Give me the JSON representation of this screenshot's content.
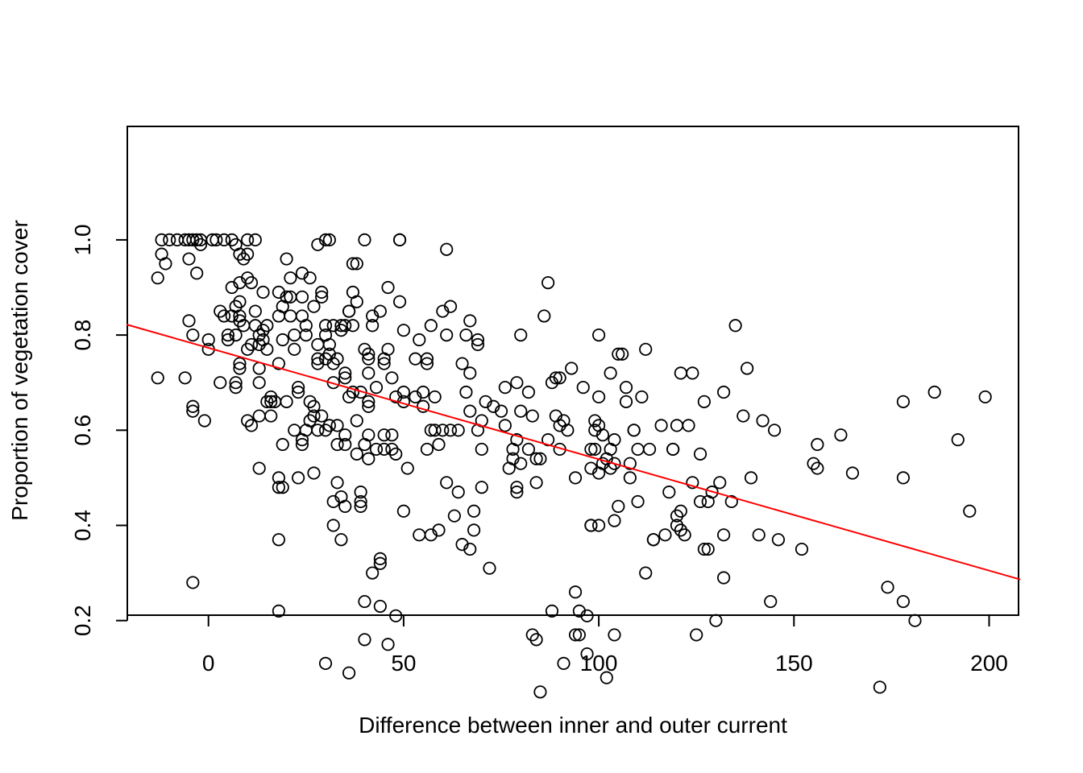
{
  "chart_data": {
    "type": "scatter",
    "title": "",
    "xlabel": "Difference between inner and outer current",
    "ylabel": "Proportion of vegetation cover",
    "xlim": [
      -21,
      208
    ],
    "ylim": [
      0.02,
      1.045
    ],
    "xticks": [
      0,
      50,
      100,
      150,
      200
    ],
    "yticks": [
      0.2,
      0.4,
      0.6,
      0.8,
      1.0
    ],
    "xtick_labels": [
      "0",
      "50",
      "100",
      "150",
      "200"
    ],
    "ytick_labels": [
      "0.2",
      "0.4",
      "0.6",
      "0.8",
      "1.0"
    ],
    "grid": false,
    "legend": "none",
    "point_color": "#000000",
    "line_color": "#ff0000",
    "fit_line": {
      "intercept": 0.773,
      "slope": -0.00234
    },
    "points": [
      [
        -12,
        1.0
      ],
      [
        -10,
        1.0
      ],
      [
        -8,
        1.0
      ],
      [
        -6,
        1.0
      ],
      [
        -5,
        1.0
      ],
      [
        -4,
        1.0
      ],
      [
        -3,
        1.0
      ],
      [
        -2,
        1.0
      ],
      [
        1,
        1.0
      ],
      [
        2,
        1.0
      ],
      [
        4,
        1.0
      ],
      [
        6,
        1.0
      ],
      [
        10,
        1.0
      ],
      [
        12,
        1.0
      ],
      [
        30,
        1.0
      ],
      [
        31,
        1.0
      ],
      [
        40,
        1.0
      ],
      [
        49,
        1.0
      ],
      [
        49,
        1.0
      ],
      [
        -12,
        0.97
      ],
      [
        -11,
        0.95
      ],
      [
        -5,
        0.96
      ],
      [
        -3,
        0.93
      ],
      [
        -2,
        0.99
      ],
      [
        6,
        0.9
      ],
      [
        7,
        0.99
      ],
      [
        8,
        0.97
      ],
      [
        9,
        0.96
      ],
      [
        10,
        0.97
      ],
      [
        10,
        0.92
      ],
      [
        11,
        0.91
      ],
      [
        8,
        0.91
      ],
      [
        -13,
        0.92
      ],
      [
        -13,
        0.71
      ],
      [
        -6,
        0.71
      ],
      [
        -5,
        0.83
      ],
      [
        -4,
        0.8
      ],
      [
        0,
        0.79
      ],
      [
        0,
        0.77
      ],
      [
        3,
        0.85
      ],
      [
        4,
        0.84
      ],
      [
        5,
        0.8
      ],
      [
        5,
        0.79
      ],
      [
        6,
        0.84
      ],
      [
        7,
        0.86
      ],
      [
        7,
        0.8
      ],
      [
        8,
        0.84
      ],
      [
        8,
        0.87
      ],
      [
        8,
        0.83
      ],
      [
        9,
        0.82
      ],
      [
        8,
        0.74
      ],
      [
        8,
        0.73
      ],
      [
        7,
        0.7
      ],
      [
        7,
        0.69
      ],
      [
        3,
        0.7
      ],
      [
        10,
        0.77
      ],
      [
        11,
        0.78
      ],
      [
        12,
        0.85
      ],
      [
        12,
        0.82
      ],
      [
        13,
        0.8
      ],
      [
        13,
        0.78
      ],
      [
        13,
        0.73
      ],
      [
        13,
        0.7
      ],
      [
        14,
        0.89
      ],
      [
        14,
        0.81
      ],
      [
        14,
        0.79
      ],
      [
        15,
        0.82
      ],
      [
        15,
        0.77
      ],
      [
        15,
        0.66
      ],
      [
        16,
        0.66
      ],
      [
        16,
        0.63
      ],
      [
        16,
        0.67
      ],
      [
        17,
        0.66
      ],
      [
        18,
        0.84
      ],
      [
        18,
        0.89
      ],
      [
        18,
        0.74
      ],
      [
        19,
        0.86
      ],
      [
        19,
        0.79
      ],
      [
        20,
        0.96
      ],
      [
        20,
        0.88
      ],
      [
        21,
        0.92
      ],
      [
        21,
        0.88
      ],
      [
        21,
        0.84
      ],
      [
        22,
        0.8
      ],
      [
        22,
        0.77
      ],
      [
        23,
        0.69
      ],
      [
        23,
        0.68
      ],
      [
        24,
        0.93
      ],
      [
        24,
        0.88
      ],
      [
        24,
        0.84
      ],
      [
        25,
        0.82
      ],
      [
        25,
        0.8
      ],
      [
        26,
        0.92
      ],
      [
        26,
        0.66
      ],
      [
        27,
        0.86
      ],
      [
        27,
        0.65
      ],
      [
        28,
        0.99
      ],
      [
        28,
        0.78
      ],
      [
        28,
        0.75
      ],
      [
        28,
        0.74
      ],
      [
        29,
        0.88
      ],
      [
        29,
        0.89
      ],
      [
        30,
        0.82
      ],
      [
        30,
        0.8
      ],
      [
        30,
        0.75
      ],
      [
        31,
        0.78
      ],
      [
        31,
        0.76
      ],
      [
        32,
        0.82
      ],
      [
        32,
        0.74
      ],
      [
        32,
        0.7
      ],
      [
        33,
        0.75
      ],
      [
        34,
        0.81
      ],
      [
        34,
        0.82
      ],
      [
        35,
        0.82
      ],
      [
        35,
        0.72
      ],
      [
        35,
        0.71
      ],
      [
        36,
        0.85
      ],
      [
        36,
        0.85
      ],
      [
        36,
        0.67
      ],
      [
        37,
        0.95
      ],
      [
        37,
        0.89
      ],
      [
        37,
        0.82
      ],
      [
        38,
        0.95
      ],
      [
        38,
        0.87
      ],
      [
        39,
        0.68
      ],
      [
        40,
        0.77
      ],
      [
        41,
        0.76
      ],
      [
        41,
        0.75
      ],
      [
        41,
        0.72
      ],
      [
        41,
        0.66
      ],
      [
        41,
        0.65
      ],
      [
        42,
        0.84
      ],
      [
        42,
        0.82
      ],
      [
        43,
        0.69
      ],
      [
        44,
        0.85
      ],
      [
        45,
        0.75
      ],
      [
        45,
        0.74
      ],
      [
        46,
        0.9
      ],
      [
        46,
        0.77
      ],
      [
        47,
        0.71
      ],
      [
        48,
        0.67
      ],
      [
        49,
        0.87
      ],
      [
        50,
        0.68
      ],
      [
        50,
        0.81
      ],
      [
        51,
        0.52
      ],
      [
        -4,
        0.28
      ],
      [
        -4,
        0.64
      ],
      [
        -4,
        0.65
      ],
      [
        -1,
        0.62
      ],
      [
        10,
        0.62
      ],
      [
        11,
        0.61
      ],
      [
        13,
        0.52
      ],
      [
        13,
        0.63
      ],
      [
        18,
        0.5
      ],
      [
        18,
        0.48
      ],
      [
        18,
        0.37
      ],
      [
        18,
        0.22
      ],
      [
        19,
        0.57
      ],
      [
        19,
        0.48
      ],
      [
        20,
        0.66
      ],
      [
        22,
        0.6
      ],
      [
        23,
        0.5
      ],
      [
        24,
        0.58
      ],
      [
        24,
        0.57
      ],
      [
        25,
        0.6
      ],
      [
        26,
        0.62
      ],
      [
        27,
        0.63
      ],
      [
        27,
        0.51
      ],
      [
        28,
        0.6
      ],
      [
        29,
        0.63
      ],
      [
        30,
        0.6
      ],
      [
        30,
        0.11
      ],
      [
        31,
        0.61
      ],
      [
        32,
        0.45
      ],
      [
        32,
        0.4
      ],
      [
        33,
        0.61
      ],
      [
        33,
        0.57
      ],
      [
        33,
        0.49
      ],
      [
        34,
        0.46
      ],
      [
        34,
        0.37
      ],
      [
        35,
        0.59
      ],
      [
        35,
        0.57
      ],
      [
        35,
        0.44
      ],
      [
        36,
        0.09
      ],
      [
        37,
        0.68
      ],
      [
        38,
        0.55
      ],
      [
        38,
        0.62
      ],
      [
        39,
        0.47
      ],
      [
        39,
        0.45
      ],
      [
        39,
        0.44
      ],
      [
        40,
        0.57
      ],
      [
        40,
        0.16
      ],
      [
        40,
        0.24
      ],
      [
        41,
        0.54
      ],
      [
        41,
        0.59
      ],
      [
        42,
        0.3
      ],
      [
        43,
        0.56
      ],
      [
        44,
        0.33
      ],
      [
        44,
        0.32
      ],
      [
        44,
        0.23
      ],
      [
        45,
        0.56
      ],
      [
        45,
        0.59
      ],
      [
        46,
        0.15
      ],
      [
        47,
        0.56
      ],
      [
        47,
        0.59
      ],
      [
        48,
        0.21
      ],
      [
        48,
        0.55
      ],
      [
        50,
        0.43
      ],
      [
        50,
        0.66
      ],
      [
        53,
        0.75
      ],
      [
        53,
        0.67
      ],
      [
        54,
        0.79
      ],
      [
        54,
        0.38
      ],
      [
        55,
        0.68
      ],
      [
        55,
        0.65
      ],
      [
        56,
        0.74
      ],
      [
        56,
        0.75
      ],
      [
        56,
        0.56
      ],
      [
        57,
        0.82
      ],
      [
        57,
        0.6
      ],
      [
        57,
        0.38
      ],
      [
        58,
        0.6
      ],
      [
        58,
        0.67
      ],
      [
        59,
        0.57
      ],
      [
        59,
        0.39
      ],
      [
        60,
        0.85
      ],
      [
        60,
        0.6
      ],
      [
        61,
        0.98
      ],
      [
        61,
        0.49
      ],
      [
        61,
        0.8
      ],
      [
        62,
        0.86
      ],
      [
        62,
        0.6
      ],
      [
        63,
        0.42
      ],
      [
        64,
        0.6
      ],
      [
        64,
        0.47
      ],
      [
        65,
        0.74
      ],
      [
        65,
        0.36
      ],
      [
        66,
        0.8
      ],
      [
        66,
        0.68
      ],
      [
        67,
        0.83
      ],
      [
        67,
        0.72
      ],
      [
        67,
        0.64
      ],
      [
        67,
        0.35
      ],
      [
        68,
        0.43
      ],
      [
        68,
        0.39
      ],
      [
        69,
        0.79
      ],
      [
        69,
        0.78
      ],
      [
        69,
        0.6
      ],
      [
        70,
        0.62
      ],
      [
        70,
        0.56
      ],
      [
        70,
        0.48
      ],
      [
        71,
        0.66
      ],
      [
        72,
        0.31
      ],
      [
        73,
        0.65
      ],
      [
        75,
        0.64
      ],
      [
        76,
        0.69
      ],
      [
        76,
        0.61
      ],
      [
        77,
        0.52
      ],
      [
        78,
        0.54
      ],
      [
        78,
        0.56
      ],
      [
        79,
        0.7
      ],
      [
        79,
        0.58
      ],
      [
        79,
        0.48
      ],
      [
        79,
        0.47
      ],
      [
        80,
        0.8
      ],
      [
        80,
        0.64
      ],
      [
        80,
        0.53
      ],
      [
        82,
        0.68
      ],
      [
        82,
        0.56
      ],
      [
        83,
        0.63
      ],
      [
        84,
        0.54
      ],
      [
        84,
        0.49
      ],
      [
        84,
        0.16
      ],
      [
        85,
        0.54
      ],
      [
        85,
        0.05
      ],
      [
        86,
        0.84
      ],
      [
        87,
        0.91
      ],
      [
        87,
        0.58
      ],
      [
        88,
        0.7
      ],
      [
        89,
        0.71
      ],
      [
        89,
        0.63
      ],
      [
        90,
        0.71
      ],
      [
        90,
        0.61
      ],
      [
        90,
        0.56
      ],
      [
        91,
        0.62
      ],
      [
        92,
        0.6
      ],
      [
        93,
        0.73
      ],
      [
        94,
        0.5
      ],
      [
        94,
        0.26
      ],
      [
        95,
        0.22
      ],
      [
        95,
        0.17
      ],
      [
        96,
        0.69
      ],
      [
        97,
        0.21
      ],
      [
        97,
        0.13
      ],
      [
        98,
        0.4
      ],
      [
        98,
        0.56
      ],
      [
        98,
        0.52
      ],
      [
        99,
        0.56
      ],
      [
        99,
        0.6
      ],
      [
        99,
        0.62
      ],
      [
        100,
        0.8
      ],
      [
        100,
        0.67
      ],
      [
        100,
        0.61
      ],
      [
        100,
        0.51
      ],
      [
        101,
        0.59
      ],
      [
        101,
        0.53
      ],
      [
        102,
        0.54
      ],
      [
        102,
        0.08
      ],
      [
        103,
        0.72
      ],
      [
        103,
        0.56
      ],
      [
        103,
        0.52
      ],
      [
        104,
        0.58
      ],
      [
        104,
        0.53
      ],
      [
        104,
        0.41
      ],
      [
        105,
        0.44
      ],
      [
        105,
        0.76
      ],
      [
        106,
        0.76
      ],
      [
        107,
        0.66
      ],
      [
        107,
        0.69
      ],
      [
        108,
        0.5
      ],
      [
        108,
        0.53
      ],
      [
        109,
        0.6
      ],
      [
        109,
        0.6
      ],
      [
        110,
        0.56
      ],
      [
        110,
        0.45
      ],
      [
        111,
        0.67
      ],
      [
        112,
        0.77
      ],
      [
        112,
        0.3
      ],
      [
        113,
        0.56
      ],
      [
        114,
        0.37
      ],
      [
        114,
        0.37
      ],
      [
        116,
        0.61
      ],
      [
        117,
        0.38
      ],
      [
        118,
        0.47
      ],
      [
        119,
        0.56
      ],
      [
        119,
        0.56
      ],
      [
        120,
        0.61
      ],
      [
        120,
        0.4
      ],
      [
        120,
        0.42
      ],
      [
        121,
        0.39
      ],
      [
        121,
        0.72
      ],
      [
        121,
        0.43
      ],
      [
        122,
        0.38
      ],
      [
        123,
        0.61
      ],
      [
        124,
        0.72
      ],
      [
        124,
        0.49
      ],
      [
        125,
        0.17
      ],
      [
        126,
        0.45
      ],
      [
        126,
        0.55
      ],
      [
        127,
        0.66
      ],
      [
        127,
        0.35
      ],
      [
        128,
        0.35
      ],
      [
        128,
        0.45
      ],
      [
        129,
        0.47
      ],
      [
        130,
        0.2
      ],
      [
        131,
        0.49
      ],
      [
        132,
        0.38
      ],
      [
        132,
        0.29
      ],
      [
        132,
        0.68
      ],
      [
        134,
        0.45
      ],
      [
        135,
        0.82
      ],
      [
        137,
        0.63
      ],
      [
        138,
        0.73
      ],
      [
        139,
        0.5
      ],
      [
        141,
        0.38
      ],
      [
        142,
        0.62
      ],
      [
        144,
        0.24
      ],
      [
        145,
        0.6
      ],
      [
        146,
        0.37
      ],
      [
        152,
        0.35
      ],
      [
        155,
        0.53
      ],
      [
        156,
        0.57
      ],
      [
        156,
        0.52
      ],
      [
        162,
        0.59
      ],
      [
        165,
        0.51
      ],
      [
        172,
        0.06
      ],
      [
        174,
        0.27
      ],
      [
        178,
        0.66
      ],
      [
        178,
        0.24
      ],
      [
        178,
        0.5
      ],
      [
        181,
        0.2
      ],
      [
        186,
        0.68
      ],
      [
        192,
        0.58
      ],
      [
        195,
        0.43
      ],
      [
        199,
        0.67
      ],
      [
        98,
        0.4
      ],
      [
        100,
        0.4
      ],
      [
        104,
        0.17
      ],
      [
        94,
        0.17
      ],
      [
        91,
        0.11
      ],
      [
        88,
        0.22
      ],
      [
        83,
        0.17
      ]
    ]
  }
}
